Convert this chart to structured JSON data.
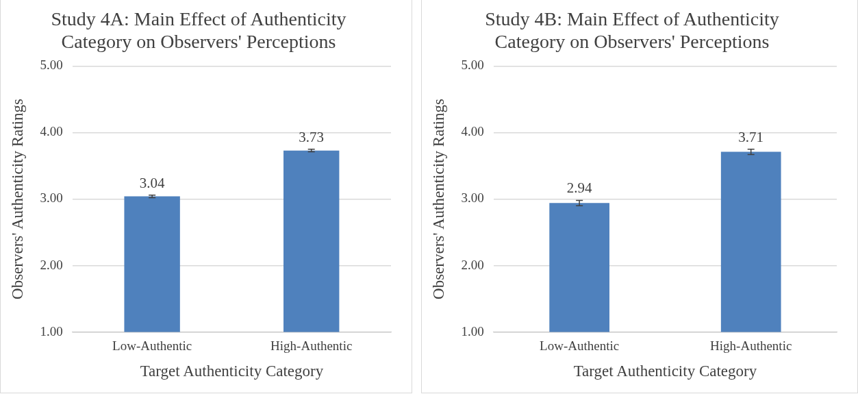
{
  "chart_data": [
    {
      "type": "bar",
      "title": "Study 4A: Main Effect of Authenticity Category on Observers' Perceptions",
      "xlabel": "Target Authenticity Category",
      "ylabel": "Observers' Authenticity Ratings",
      "categories": [
        "Low-Authentic",
        "High-Authentic"
      ],
      "values": [
        3.04,
        3.73
      ],
      "errors": [
        0.02,
        0.02
      ],
      "color": "#4f81bd",
      "ylim": [
        1,
        5
      ],
      "yticks": [
        {
          "value": 1,
          "label": "1.00"
        },
        {
          "value": 2,
          "label": "2.00"
        },
        {
          "value": 3,
          "label": "3.00"
        },
        {
          "value": 4,
          "label": "4.00"
        },
        {
          "value": 5,
          "label": "5.00"
        }
      ],
      "grid": "y",
      "data_labels": true
    },
    {
      "type": "bar",
      "title": "Study 4B: Main Effect of Authenticity Category on Observers' Perceptions",
      "xlabel": "Target Authenticity Category",
      "ylabel": "Observers' Authenticity Ratings",
      "categories": [
        "Low-Authentic",
        "High-Authentic"
      ],
      "values": [
        2.94,
        3.71
      ],
      "errors": [
        0.04,
        0.04
      ],
      "color": "#4f81bd",
      "ylim": [
        1,
        5
      ],
      "yticks": [
        {
          "value": 1,
          "label": "1.00"
        },
        {
          "value": 2,
          "label": "2.00"
        },
        {
          "value": 3,
          "label": "3.00"
        },
        {
          "value": 4,
          "label": "4.00"
        },
        {
          "value": 5,
          "label": "5.00"
        }
      ],
      "grid": "y",
      "data_labels": true
    }
  ]
}
